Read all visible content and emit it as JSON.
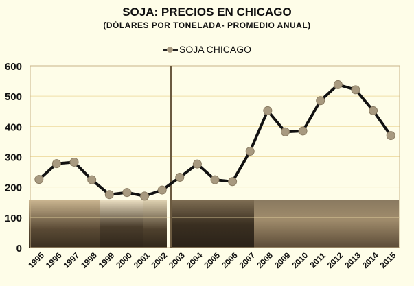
{
  "header": {
    "title": "SOJA: PRECIOS EN CHICAGO",
    "subtitle": "(DÓLARES POR TONELADA- PROMEDIO ANUAL)"
  },
  "legend": {
    "label": "SOJA CHICAGO"
  },
  "colors": {
    "background": "#fefde8",
    "plot": "#fefcdf",
    "grid": "#f0dfa8",
    "line": "#111111",
    "marker": "#a89a80",
    "divider": "#6b5a40"
  },
  "chart_data": {
    "type": "line",
    "title": "SOJA: PRECIOS EN CHICAGO",
    "subtitle": "(DÓLARES POR TONELADA- PROMEDIO ANUAL)",
    "xlabel": "",
    "ylabel": "",
    "ylim": [
      0,
      600
    ],
    "yticks": [
      0,
      100,
      200,
      300,
      400,
      500,
      600
    ],
    "grid": true,
    "legend_position": "top",
    "categories": [
      "1995",
      "1996",
      "1997",
      "1998",
      "1999",
      "2000",
      "2001",
      "2002",
      "2003",
      "2004",
      "2005",
      "2006",
      "2007",
      "2008",
      "2009",
      "2010",
      "2011",
      "2012",
      "2013",
      "2014",
      "2015"
    ],
    "series": [
      {
        "name": "SOJA CHICAGO",
        "values": [
          225,
          277,
          282,
          224,
          175,
          182,
          170,
          190,
          232,
          276,
          224,
          218,
          318,
          452,
          382,
          385,
          485,
          538,
          521,
          452,
          370
        ]
      }
    ],
    "annotations": [
      "Vertical divider line between 2002 and 2003",
      "Presidential portrait photos along bottom of plot area"
    ]
  }
}
